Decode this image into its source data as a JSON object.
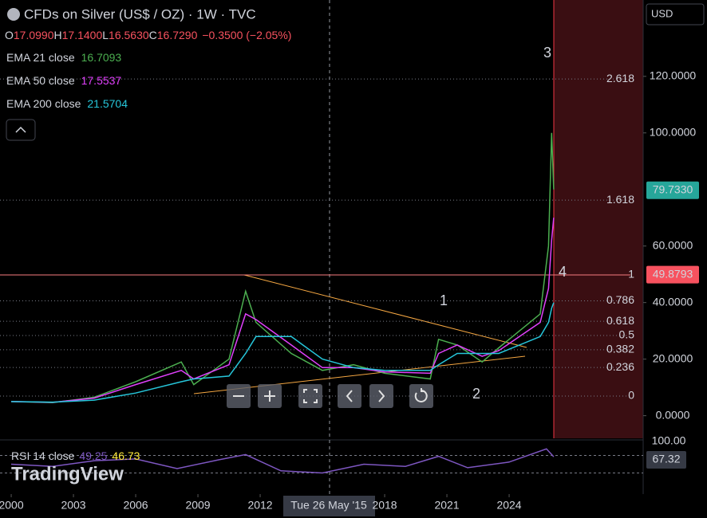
{
  "chart_data": {
    "type": "line",
    "title": "CFDs on Silver (US$ / OZ) · 1W · TVC",
    "ohlc": [
      "O",
      "17.0990",
      "H",
      "17.1400",
      "L",
      "16.5630",
      "C",
      "16.7290",
      "−0.3500 (−2.05%)"
    ],
    "currency": "USD",
    "x": [
      2000,
      2002,
      2004,
      2006,
      2008.2,
      2008.8,
      2010.5,
      2011.3,
      2011.8,
      2013.5,
      2015,
      2016.5,
      2018,
      2020.2,
      2020.6,
      2021.5,
      2022.7,
      2023.5,
      2024.5,
      2025.5,
      2025.9,
      2026.05,
      2026.15
    ],
    "series": [
      {
        "name": "EMA 21 close",
        "color": "#4caf50",
        "legend_value": "16.7093",
        "values": [
          5,
          4.6,
          6.5,
          12,
          19,
          11,
          20,
          44,
          33,
          22,
          16,
          18,
          15,
          13,
          27,
          25,
          19,
          24,
          30,
          36,
          60,
          100,
          80
        ]
      },
      {
        "name": "EMA 50 close",
        "color": "#e040fb",
        "legend_value": "17.5537",
        "values": [
          5,
          4.7,
          6.2,
          11,
          16,
          13,
          18,
          36,
          34,
          25,
          17,
          17,
          15.5,
          15,
          22,
          25,
          21,
          23,
          28,
          33,
          45,
          62,
          70
        ]
      },
      {
        "name": "EMA 200 close",
        "color": "#26c6da",
        "legend_value": "21.5704",
        "values": [
          5,
          4.8,
          5.5,
          8,
          12,
          13,
          14,
          22,
          28,
          28,
          20,
          17,
          16,
          16,
          18,
          22,
          22,
          22,
          25,
          28,
          33,
          38,
          40
        ]
      }
    ],
    "xlim": [
      1999.46,
      2030.46
    ],
    "xticks": [
      2000,
      2003,
      2006,
      2009,
      2012,
      2018,
      2021,
      2024
    ],
    "ylim": [
      -8,
      147
    ],
    "yticks": [
      {
        "value": 0,
        "label": "0.0000"
      },
      {
        "value": 20,
        "label": "20.0000"
      },
      {
        "value": 40,
        "label": "40.0000"
      },
      {
        "value": 60,
        "label": "60.0000"
      },
      {
        "value": 100,
        "label": "100.0000"
      },
      {
        "value": 120,
        "label": "120.0000"
      }
    ],
    "price_badges": [
      {
        "value": 79.733,
        "label": "79.7330",
        "color": "#26a69a"
      },
      {
        "value": 49.8793,
        "label": "49.8793",
        "color": "#f7525f"
      }
    ],
    "fib_levels": [
      {
        "ratio": 2.618,
        "label": "2.618"
      },
      {
        "ratio": 1.618,
        "label": "1.618"
      },
      {
        "ratio": 1,
        "label": "1"
      },
      {
        "ratio": 0.786,
        "label": "0.786"
      },
      {
        "ratio": 0.618,
        "label": "0.618"
      },
      {
        "ratio": 0.5,
        "label": "0.5"
      },
      {
        "ratio": 0.382,
        "label": "0.382"
      },
      {
        "ratio": 0.236,
        "label": "0.236"
      },
      {
        "ratio": 0,
        "label": "0"
      }
    ],
    "wave_labels": [
      "1",
      "2",
      "3",
      "4"
    ],
    "crosshair_label": "Tue 26 May '15",
    "rsi": {
      "title": "RSI 14 close",
      "value": "49.25",
      "ma_value": "46.73",
      "top_label": "100.00",
      "last_label": "67.32",
      "x": [
        2000,
        2002,
        2004,
        2006,
        2008,
        2010,
        2011.3,
        2013,
        2015,
        2017,
        2019,
        2020.6,
        2022,
        2024,
        2025.8,
        2026.15
      ],
      "values": [
        50,
        45,
        58,
        62,
        40,
        60,
        72,
        35,
        30,
        50,
        45,
        68,
        42,
        55,
        85,
        67
      ]
    },
    "brand": "TradingView"
  }
}
